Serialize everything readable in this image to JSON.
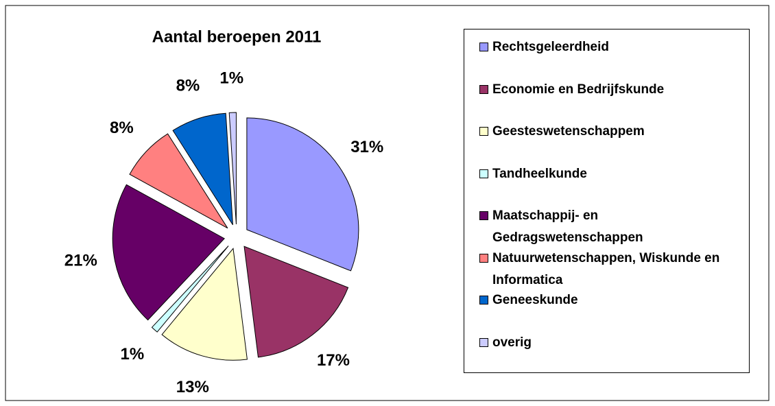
{
  "chart_data": {
    "type": "pie",
    "title": "Aantal beroepen 2011",
    "categories": [
      "Rechtsgeleerdheid",
      "Economie en Bedrijfskunde",
      "Geesteswetenschappem",
      "Tandheelkunde",
      "Maatschappij- en Gedragswetenschappen",
      "Natuurwetenschappen, Wiskunde en Informatica",
      "Geneeskunde",
      "overig"
    ],
    "values": [
      31,
      17,
      13,
      1,
      21,
      8,
      8,
      1
    ],
    "value_labels": [
      "31%",
      "17%",
      "13%",
      "1%",
      "21%",
      "8%",
      "8%",
      "1%"
    ],
    "colors": [
      "#9999ff",
      "#993366",
      "#ffffcc",
      "#ccffff",
      "#660066",
      "#ff8080",
      "#0066cc",
      "#ccccff"
    ],
    "legend": "right"
  }
}
